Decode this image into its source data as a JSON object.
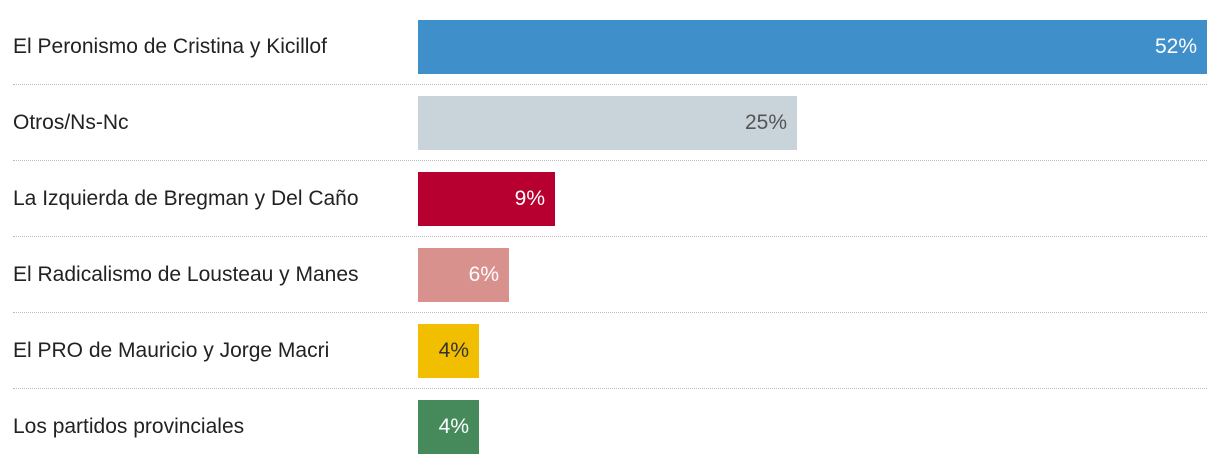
{
  "chart_data": {
    "type": "bar",
    "orientation": "horizontal",
    "categories": [
      "El Peronismo de Cristina y Kicillof",
      "Otros/Ns-Nc",
      "La Izquierda de Bregman y Del Caño",
      "El Radicalismo de Lousteau y Manes",
      "El PRO de Mauricio y Jorge Macri",
      "Los partidos provinciales"
    ],
    "values": [
      52,
      25,
      9,
      6,
      4,
      4
    ],
    "value_labels": [
      "52%",
      "25%",
      "9%",
      "6%",
      "4%",
      "4%"
    ],
    "colors": [
      "#3f8fcb",
      "#c8d3da",
      "#b80030",
      "#d9918d",
      "#f2be00",
      "#468a5c"
    ],
    "label_colors": [
      "#ffffff",
      "#555555",
      "#ffffff",
      "#ffffff",
      "#333333",
      "#ffffff"
    ],
    "xlim": [
      0,
      52
    ],
    "grid": false,
    "title": "",
    "xlabel": "",
    "ylabel": ""
  }
}
